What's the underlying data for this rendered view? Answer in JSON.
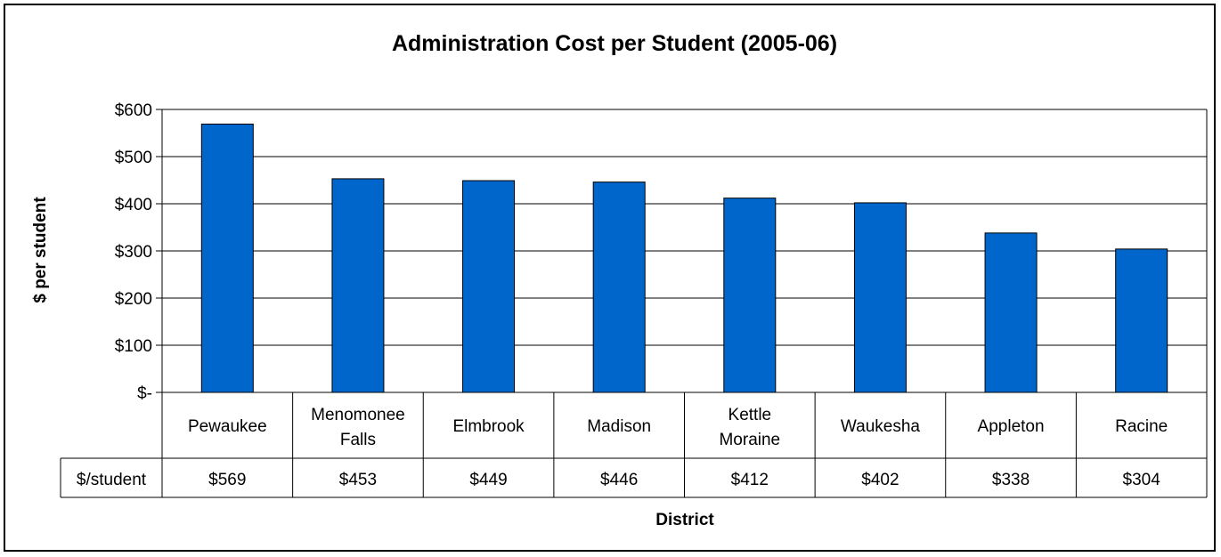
{
  "chart_data": {
    "type": "bar",
    "title": "Administration Cost per Student (2005-06)",
    "xlabel": "District",
    "ylabel": "$ per student",
    "categories": [
      "Pewaukee",
      "Menomonee Falls",
      "Elmbrook",
      "Madison",
      "Kettle Moraine",
      "Waukesha",
      "Appleton",
      "Racine"
    ],
    "category_lines": [
      [
        "Pewaukee"
      ],
      [
        "Menomonee",
        "Falls"
      ],
      [
        "Elmbrook"
      ],
      [
        "Madison"
      ],
      [
        "Kettle",
        "Moraine"
      ],
      [
        "Waukesha"
      ],
      [
        "Appleton"
      ],
      [
        "Racine"
      ]
    ],
    "series": [
      {
        "name": "$/student",
        "values": [
          569,
          453,
          449,
          446,
          412,
          402,
          338,
          304
        ]
      }
    ],
    "value_labels": [
      "$569",
      "$453",
      "$449",
      "$446",
      "$412",
      "$402",
      "$338",
      "$304"
    ],
    "yticks": [
      "$-",
      "$100",
      "$200",
      "$300",
      "$400",
      "$500",
      "$600"
    ],
    "ylim": [
      0,
      600
    ],
    "grid": true,
    "legend": "data table",
    "bar_color": "#0066CC"
  }
}
